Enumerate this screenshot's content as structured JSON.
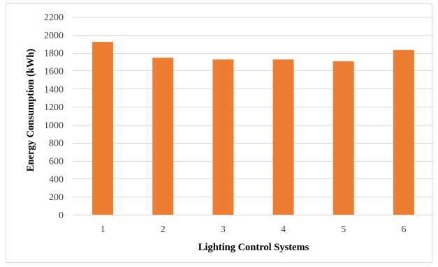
{
  "chart_data": {
    "type": "bar",
    "title": "",
    "xlabel": "Lighting Control Systems",
    "ylabel": "Energy Consumption (kWh)",
    "categories": [
      "1",
      "2",
      "3",
      "4",
      "5",
      "6"
    ],
    "values": [
      1920,
      1745,
      1725,
      1725,
      1705,
      1830
    ],
    "ylim": [
      0,
      2200
    ],
    "ytick_step": 200,
    "yticks": [
      "0",
      "200",
      "400",
      "600",
      "800",
      "1000",
      "1200",
      "1400",
      "1600",
      "1800",
      "2000",
      "2200"
    ],
    "grid": true,
    "legend": "none",
    "bar_color": "#ED7D31",
    "grid_color": "#D9D9D9"
  }
}
